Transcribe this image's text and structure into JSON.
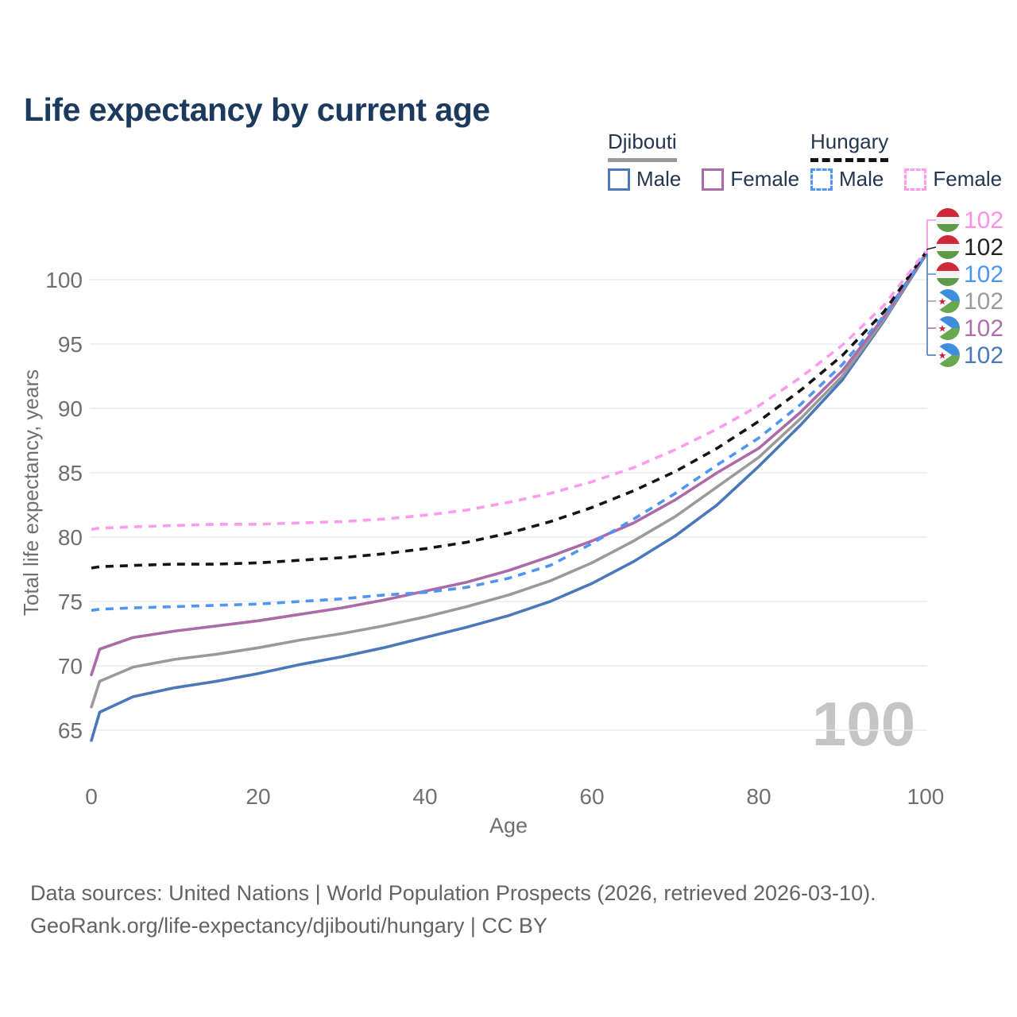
{
  "title": "Life expectancy by current age",
  "watermark": "100",
  "legend": {
    "groups": [
      {
        "label": "Djibouti",
        "line_style": "solid",
        "underline_color": "#999999",
        "items": [
          {
            "label": "Male",
            "color": "#4a78b8"
          },
          {
            "label": "Female",
            "color": "#ab6aa8"
          }
        ]
      },
      {
        "label": "Hungary",
        "line_style": "dashed",
        "underline_color": "#141414",
        "items": [
          {
            "label": "Male",
            "color": "#4f96f2"
          },
          {
            "label": "Female",
            "color": "#fd9bec"
          }
        ]
      }
    ]
  },
  "footer": {
    "line1": "Data sources: United Nations | World Population Prospects (2026, retrieved 2026-03-10).",
    "line2": "GeoRank.org/life-expectancy/djibouti/hungary | CC BY"
  },
  "chart_data": {
    "type": "line",
    "title": "Life expectancy by current age",
    "xlabel": "Age",
    "ylabel": "Total life expectancy, years",
    "grid": true,
    "legend_position": "top-right",
    "xlim": [
      0,
      100
    ],
    "ylim": [
      63,
      103
    ],
    "xticks": [
      0,
      20,
      40,
      60,
      80,
      100
    ],
    "yticks": [
      65,
      70,
      75,
      80,
      85,
      90,
      95,
      100
    ],
    "x": [
      0,
      1,
      5,
      10,
      15,
      20,
      25,
      30,
      35,
      40,
      45,
      50,
      55,
      60,
      65,
      70,
      75,
      80,
      85,
      90,
      95,
      100
    ],
    "series": [
      {
        "name": "Djibouti Male",
        "country": "Djibouti",
        "sex": "Male",
        "color": "#4a78b8",
        "dash": "solid",
        "values": [
          64.2,
          66.4,
          67.6,
          68.3,
          68.8,
          69.4,
          70.1,
          70.7,
          71.4,
          72.2,
          73.0,
          73.9,
          75.0,
          76.4,
          78.1,
          80.1,
          82.5,
          85.5,
          88.7,
          92.2,
          96.8,
          101.9
        ]
      },
      {
        "name": "Djibouti Total",
        "country": "Djibouti",
        "sex": "Both",
        "color": "#9a9a9a",
        "dash": "solid",
        "values": [
          66.8,
          68.8,
          69.9,
          70.5,
          70.9,
          71.4,
          72.0,
          72.5,
          73.1,
          73.8,
          74.6,
          75.5,
          76.6,
          78.0,
          79.7,
          81.6,
          83.9,
          86.2,
          89.2,
          92.5,
          96.9,
          102.0
        ]
      },
      {
        "name": "Djibouti Female",
        "country": "Djibouti",
        "sex": "Female",
        "color": "#ab6aa8",
        "dash": "solid",
        "values": [
          69.3,
          71.3,
          72.2,
          72.7,
          73.1,
          73.5,
          74.0,
          74.5,
          75.1,
          75.8,
          76.5,
          77.4,
          78.5,
          79.7,
          81.1,
          82.9,
          85.0,
          86.9,
          89.7,
          92.9,
          97.1,
          102.0
        ]
      },
      {
        "name": "Hungary Male",
        "country": "Hungary",
        "sex": "Male",
        "color": "#4f96f2",
        "dash": "dashed",
        "values": [
          74.3,
          74.4,
          74.5,
          74.6,
          74.7,
          74.8,
          75.0,
          75.2,
          75.5,
          75.7,
          76.1,
          76.8,
          77.8,
          79.5,
          81.4,
          83.4,
          85.6,
          87.7,
          90.3,
          93.4,
          97.2,
          102.0
        ]
      },
      {
        "name": "Hungary Total",
        "country": "Hungary",
        "sex": "Both",
        "color": "#141414",
        "dash": "dashed",
        "values": [
          77.6,
          77.7,
          77.8,
          77.9,
          77.9,
          78.0,
          78.2,
          78.4,
          78.7,
          79.1,
          79.6,
          80.3,
          81.2,
          82.3,
          83.6,
          85.1,
          86.9,
          89.0,
          91.4,
          94.1,
          97.5,
          102.1
        ]
      },
      {
        "name": "Hungary Female",
        "country": "Hungary",
        "sex": "Female",
        "color": "#fd9bec",
        "dash": "dashed",
        "values": [
          80.6,
          80.7,
          80.8,
          80.9,
          81.0,
          81.0,
          81.1,
          81.2,
          81.4,
          81.7,
          82.1,
          82.7,
          83.4,
          84.3,
          85.4,
          86.8,
          88.4,
          90.2,
          92.4,
          94.9,
          98.0,
          102.2
        ]
      }
    ],
    "end_labels": [
      {
        "value": "102",
        "color": "#ff8fe0",
        "flag": "hungary",
        "series": "Hungary Female"
      },
      {
        "value": "102",
        "color": "#222222",
        "flag": "hungary",
        "series": "Hungary Total"
      },
      {
        "value": "102",
        "color": "#4f96f2",
        "flag": "hungary",
        "series": "Hungary Male"
      },
      {
        "value": "102",
        "color": "#9b9b9b",
        "flag": "djibouti",
        "series": "Djibouti Total"
      },
      {
        "value": "102",
        "color": "#b06fac",
        "flag": "djibouti",
        "series": "Djibouti Female"
      },
      {
        "value": "102",
        "color": "#4a78b8",
        "flag": "djibouti",
        "series": "Djibouti Male"
      }
    ],
    "flag_colors": {
      "hungary": {
        "red": "#ce2939",
        "white": "#f3f3f3",
        "green": "#5f9a48"
      },
      "djibouti": {
        "blue": "#3f8ede",
        "green": "#6aa84f",
        "white": "#ffffff",
        "star": "#d21f3c"
      }
    }
  }
}
